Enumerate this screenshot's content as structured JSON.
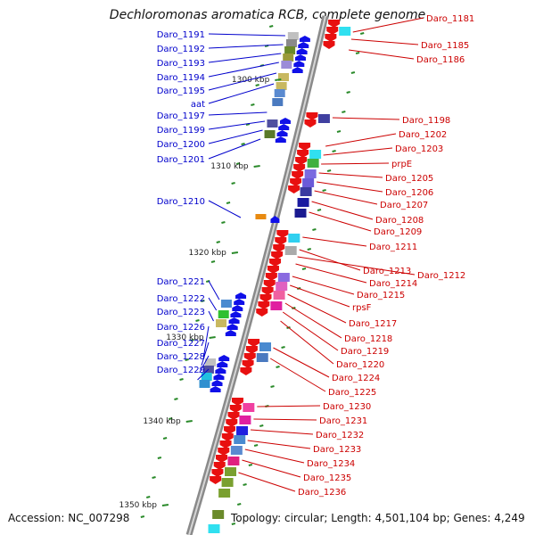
{
  "title": "Dechloromonas aromatica RCB, complete genome",
  "footer": {
    "accession": "Accession: NC_007298",
    "topology": "Topology: circular; Length: 4,501,104 bp; Genes: 4,249"
  },
  "colors": {
    "left_label": "#0000cc",
    "right_label": "#cc0000",
    "backbone": "#999999",
    "tick": "#2a8a2a"
  },
  "kbp_ticks": [
    "1300 kbp",
    "1310 kbp",
    "1320 kbp",
    "1330 kbp",
    "1340 kbp",
    "1350 kbp"
  ],
  "left_genes": [
    "Daro_1191",
    "Daro_1192",
    "Daro_1193",
    "Daro_1194",
    "Daro_1195",
    "aat",
    "Daro_1197",
    "Daro_1199",
    "Daro_1200",
    "Daro_1201",
    "Daro_1210",
    "Daro_1221",
    "Daro_1222",
    "Daro_1223",
    "Daro_1226",
    "Daro_1227",
    "Daro_1228",
    "Daro_1229"
  ],
  "right_genes": [
    "Daro_1181",
    "Daro_1185",
    "Daro_1186",
    "Daro_1198",
    "Daro_1202",
    "Daro_1203",
    "prpE",
    "Daro_1205",
    "Daro_1206",
    "Daro_1207",
    "Daro_1208",
    "Daro_1209",
    "Daro_1211",
    "Daro_1213",
    "Daro_1212",
    "Daro_1214",
    "Daro_1215",
    "rpsF",
    "Daro_1217",
    "Daro_1218",
    "Daro_1219",
    "Daro_1220",
    "Daro_1224",
    "Daro_1225",
    "Daro_1230",
    "Daro_1231",
    "Daro_1232",
    "Daro_1233",
    "Daro_1234",
    "Daro_1235",
    "Daro_1236"
  ]
}
